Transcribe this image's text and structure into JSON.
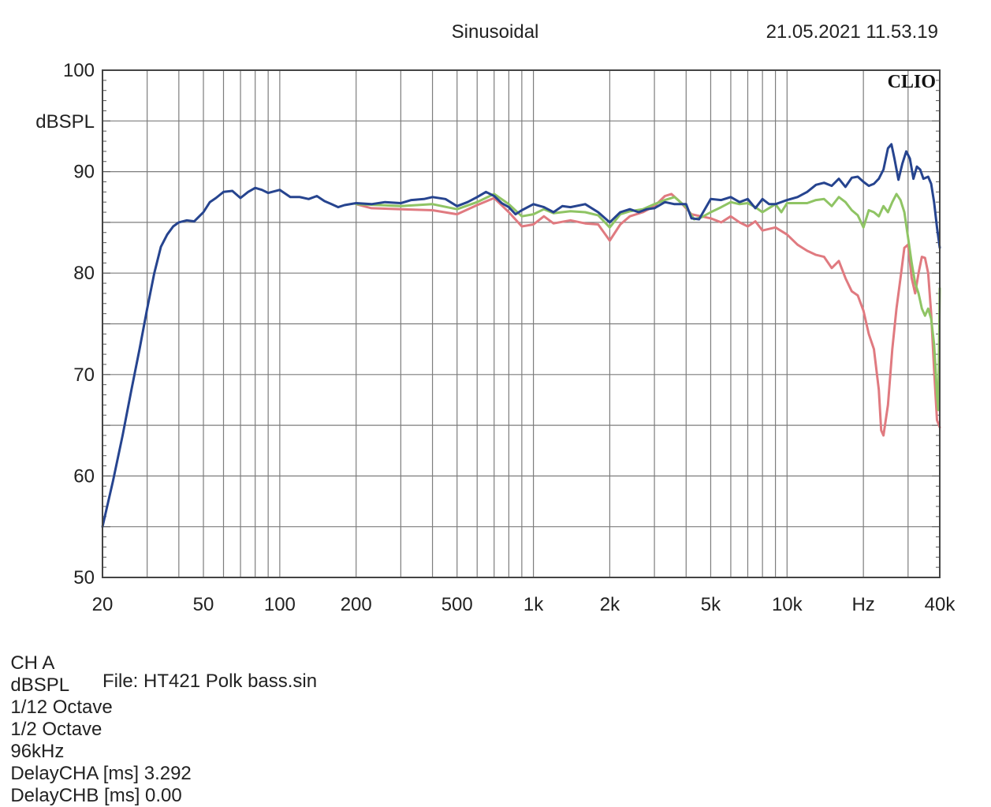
{
  "header": {
    "mode": "Sinusoidal",
    "timestamp": "21.05.2021 11.53.19",
    "brand": "CLIO"
  },
  "footer": {
    "items": [
      "CH A",
      "dBSPL",
      "1/12 Octave",
      "1/2 Octave",
      "96kHz",
      "DelayCHA [ms] 3.292",
      "DelayCHB [ms] 0.00"
    ],
    "file": "File: HT421 Polk bass.sin"
  },
  "chart_data": {
    "type": "line",
    "title": "",
    "xlabel": "",
    "ylabel": "dBSPL",
    "x_scale": "log",
    "xlim": [
      20,
      40000
    ],
    "ylim": [
      50,
      100
    ],
    "grid": true,
    "xticks": [
      {
        "value": 20,
        "label": "20"
      },
      {
        "value": 50,
        "label": "50"
      },
      {
        "value": 100,
        "label": "100"
      },
      {
        "value": 200,
        "label": "200"
      },
      {
        "value": 500,
        "label": "500"
      },
      {
        "value": 1000,
        "label": "1k"
      },
      {
        "value": 2000,
        "label": "2k"
      },
      {
        "value": 5000,
        "label": "5k"
      },
      {
        "value": 10000,
        "label": "10k"
      },
      {
        "value": 20000,
        "label": "Hz"
      },
      {
        "value": 40000,
        "label": "40k"
      }
    ],
    "yticks": [
      {
        "value": 100,
        "label": "100"
      },
      {
        "value": 90,
        "label": "90"
      },
      {
        "value": 80,
        "label": "80"
      },
      {
        "value": 70,
        "label": "70"
      },
      {
        "value": 60,
        "label": "60"
      },
      {
        "value": 50,
        "label": "50"
      }
    ],
    "series": [
      {
        "color": "#e07a80",
        "points": [
          [
            200,
            86.8
          ],
          [
            230,
            86.4
          ],
          [
            300,
            86.3
          ],
          [
            400,
            86.2
          ],
          [
            500,
            85.8
          ],
          [
            600,
            86.7
          ],
          [
            700,
            87.4
          ],
          [
            800,
            86.0
          ],
          [
            900,
            84.6
          ],
          [
            1000,
            84.8
          ],
          [
            1100,
            85.6
          ],
          [
            1200,
            84.9
          ],
          [
            1400,
            85.2
          ],
          [
            1600,
            84.9
          ],
          [
            1800,
            84.8
          ],
          [
            2000,
            83.2
          ],
          [
            2200,
            84.8
          ],
          [
            2400,
            85.6
          ],
          [
            2700,
            86.0
          ],
          [
            3000,
            86.6
          ],
          [
            3300,
            87.6
          ],
          [
            3500,
            87.8
          ],
          [
            3800,
            87.0
          ],
          [
            4200,
            85.8
          ],
          [
            5000,
            85.4
          ],
          [
            5500,
            85.0
          ],
          [
            6000,
            85.6
          ],
          [
            6500,
            85.0
          ],
          [
            7000,
            84.6
          ],
          [
            7500,
            85.1
          ],
          [
            8000,
            84.2
          ],
          [
            9000,
            84.5
          ],
          [
            10000,
            83.8
          ],
          [
            11000,
            82.8
          ],
          [
            12000,
            82.2
          ],
          [
            13000,
            81.8
          ],
          [
            14000,
            81.6
          ],
          [
            15000,
            80.5
          ],
          [
            16000,
            81.2
          ],
          [
            17000,
            79.5
          ],
          [
            18000,
            78.2
          ],
          [
            19000,
            77.8
          ],
          [
            20000,
            76.3
          ],
          [
            21000,
            74.0
          ],
          [
            22000,
            72.5
          ],
          [
            23000,
            68.5
          ],
          [
            23500,
            64.5
          ],
          [
            24000,
            64.0
          ],
          [
            25000,
            67.0
          ],
          [
            26000,
            72.5
          ],
          [
            27000,
            76.5
          ],
          [
            28000,
            79.5
          ],
          [
            29000,
            82.5
          ],
          [
            30000,
            82.8
          ],
          [
            31000,
            79.5
          ],
          [
            32000,
            78.0
          ],
          [
            33000,
            80.0
          ],
          [
            34000,
            81.6
          ],
          [
            35000,
            81.5
          ],
          [
            36000,
            80.0
          ],
          [
            37000,
            76.0
          ],
          [
            38000,
            70.5
          ],
          [
            39000,
            65.5
          ],
          [
            40000,
            64.8
          ]
        ]
      },
      {
        "color": "#8fc464",
        "points": [
          [
            200,
            86.8
          ],
          [
            250,
            86.7
          ],
          [
            300,
            86.6
          ],
          [
            400,
            86.8
          ],
          [
            500,
            86.3
          ],
          [
            600,
            87.0
          ],
          [
            700,
            87.8
          ],
          [
            800,
            86.8
          ],
          [
            900,
            85.6
          ],
          [
            1000,
            85.8
          ],
          [
            1100,
            86.3
          ],
          [
            1200,
            85.9
          ],
          [
            1400,
            86.1
          ],
          [
            1600,
            86.0
          ],
          [
            1800,
            85.7
          ],
          [
            2000,
            84.5
          ],
          [
            2200,
            85.8
          ],
          [
            2400,
            86.1
          ],
          [
            2700,
            86.3
          ],
          [
            3000,
            86.8
          ],
          [
            3300,
            87.2
          ],
          [
            3600,
            87.5
          ],
          [
            4000,
            86.5
          ],
          [
            4300,
            85.3
          ],
          [
            4600,
            85.5
          ],
          [
            5000,
            86.0
          ],
          [
            5500,
            86.5
          ],
          [
            6000,
            87.0
          ],
          [
            6500,
            86.8
          ],
          [
            7000,
            86.9
          ],
          [
            7500,
            86.5
          ],
          [
            8000,
            86.0
          ],
          [
            9000,
            86.8
          ],
          [
            9500,
            86.0
          ],
          [
            10000,
            86.9
          ],
          [
            11000,
            86.9
          ],
          [
            12000,
            86.9
          ],
          [
            13000,
            87.2
          ],
          [
            14000,
            87.3
          ],
          [
            15000,
            86.6
          ],
          [
            16000,
            87.5
          ],
          [
            17000,
            87.0
          ],
          [
            18000,
            86.2
          ],
          [
            19000,
            85.7
          ],
          [
            20000,
            84.5
          ],
          [
            21000,
            86.2
          ],
          [
            22000,
            86.0
          ],
          [
            23000,
            85.6
          ],
          [
            24000,
            86.6
          ],
          [
            25000,
            86.0
          ],
          [
            26000,
            87.0
          ],
          [
            27000,
            87.8
          ],
          [
            28000,
            87.2
          ],
          [
            29000,
            86.0
          ],
          [
            30000,
            83.5
          ],
          [
            31000,
            81.0
          ],
          [
            32000,
            79.0
          ],
          [
            33000,
            78.0
          ],
          [
            34000,
            76.5
          ],
          [
            35000,
            75.8
          ],
          [
            36000,
            76.5
          ],
          [
            37000,
            75.5
          ],
          [
            38000,
            73.0
          ],
          [
            39000,
            68.0
          ],
          [
            39500,
            66.5
          ],
          [
            40000,
            78.5
          ]
        ]
      },
      {
        "color": "#26448f",
        "points": [
          [
            20,
            55.0
          ],
          [
            22,
            59.5
          ],
          [
            24,
            64.0
          ],
          [
            26,
            68.5
          ],
          [
            28,
            72.5
          ],
          [
            30,
            76.5
          ],
          [
            32,
            80.0
          ],
          [
            34,
            82.6
          ],
          [
            36,
            83.8
          ],
          [
            38,
            84.6
          ],
          [
            40,
            85.0
          ],
          [
            43,
            85.2
          ],
          [
            46,
            85.1
          ],
          [
            50,
            86.0
          ],
          [
            53,
            87.0
          ],
          [
            56,
            87.4
          ],
          [
            60,
            88.0
          ],
          [
            65,
            88.1
          ],
          [
            70,
            87.4
          ],
          [
            75,
            88.0
          ],
          [
            80,
            88.4
          ],
          [
            85,
            88.2
          ],
          [
            90,
            87.9
          ],
          [
            100,
            88.2
          ],
          [
            110,
            87.5
          ],
          [
            120,
            87.5
          ],
          [
            130,
            87.3
          ],
          [
            140,
            87.6
          ],
          [
            150,
            87.1
          ],
          [
            160,
            86.8
          ],
          [
            170,
            86.5
          ],
          [
            180,
            86.7
          ],
          [
            200,
            86.9
          ],
          [
            230,
            86.8
          ],
          [
            260,
            87.0
          ],
          [
            300,
            86.9
          ],
          [
            330,
            87.2
          ],
          [
            370,
            87.3
          ],
          [
            400,
            87.5
          ],
          [
            450,
            87.3
          ],
          [
            500,
            86.6
          ],
          [
            550,
            87.0
          ],
          [
            600,
            87.5
          ],
          [
            650,
            88.0
          ],
          [
            700,
            87.6
          ],
          [
            750,
            86.9
          ],
          [
            800,
            86.5
          ],
          [
            850,
            85.8
          ],
          [
            900,
            86.2
          ],
          [
            1000,
            86.8
          ],
          [
            1100,
            86.5
          ],
          [
            1200,
            86.0
          ],
          [
            1300,
            86.6
          ],
          [
            1400,
            86.5
          ],
          [
            1600,
            86.8
          ],
          [
            1800,
            86.0
          ],
          [
            2000,
            85.0
          ],
          [
            2200,
            86.0
          ],
          [
            2400,
            86.3
          ],
          [
            2600,
            86.0
          ],
          [
            2800,
            86.3
          ],
          [
            3000,
            86.4
          ],
          [
            3300,
            87.0
          ],
          [
            3600,
            86.8
          ],
          [
            4000,
            86.8
          ],
          [
            4200,
            85.4
          ],
          [
            4500,
            85.3
          ],
          [
            5000,
            87.3
          ],
          [
            5500,
            87.2
          ],
          [
            6000,
            87.5
          ],
          [
            6500,
            87.0
          ],
          [
            7000,
            87.3
          ],
          [
            7500,
            86.4
          ],
          [
            8000,
            87.3
          ],
          [
            8500,
            86.8
          ],
          [
            9000,
            86.8
          ],
          [
            10000,
            87.2
          ],
          [
            11000,
            87.5
          ],
          [
            12000,
            88.0
          ],
          [
            13000,
            88.7
          ],
          [
            14000,
            88.9
          ],
          [
            15000,
            88.6
          ],
          [
            16000,
            89.3
          ],
          [
            17000,
            88.5
          ],
          [
            18000,
            89.4
          ],
          [
            19000,
            89.5
          ],
          [
            20000,
            89.0
          ],
          [
            21000,
            88.6
          ],
          [
            22000,
            88.8
          ],
          [
            23000,
            89.3
          ],
          [
            24000,
            90.2
          ],
          [
            25000,
            92.3
          ],
          [
            25800,
            92.7
          ],
          [
            26500,
            91.3
          ],
          [
            27500,
            89.2
          ],
          [
            28500,
            90.8
          ],
          [
            29500,
            92.0
          ],
          [
            30500,
            91.3
          ],
          [
            31500,
            89.3
          ],
          [
            32500,
            90.5
          ],
          [
            33500,
            90.2
          ],
          [
            34500,
            89.3
          ],
          [
            36000,
            89.5
          ],
          [
            37000,
            88.8
          ],
          [
            38000,
            87.0
          ],
          [
            39000,
            84.5
          ],
          [
            40000,
            82.5
          ]
        ]
      }
    ]
  }
}
